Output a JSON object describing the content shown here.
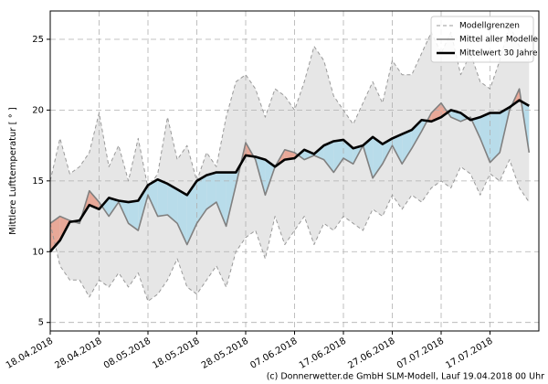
{
  "chart_data": {
    "type": "line",
    "y_label": "Mittlere Lufttemperatur [ ° ]",
    "credit": "(c) Donnerwetter.de GmbH SLM-Modell, Lauf 19.04.2018 00 Uhr",
    "x": [
      "18.04.2018",
      "20.04.2018",
      "22.04.2018",
      "24.04.2018",
      "26.04.2018",
      "28.04.2018",
      "30.04.2018",
      "02.05.2018",
      "04.05.2018",
      "06.05.2018",
      "08.05.2018",
      "10.05.2018",
      "12.05.2018",
      "14.05.2018",
      "16.05.2018",
      "18.05.2018",
      "20.05.2018",
      "22.05.2018",
      "24.05.2018",
      "26.05.2018",
      "28.05.2018",
      "30.05.2018",
      "01.06.2018",
      "03.06.2018",
      "05.06.2018",
      "07.06.2018",
      "09.06.2018",
      "11.06.2018",
      "13.06.2018",
      "15.06.2018",
      "17.06.2018",
      "19.06.2018",
      "21.06.2018",
      "23.06.2018",
      "25.06.2018",
      "27.06.2018",
      "29.06.2018",
      "01.07.2018",
      "03.07.2018",
      "05.07.2018",
      "07.07.2018",
      "09.07.2018",
      "11.07.2018",
      "13.07.2018",
      "15.07.2018",
      "17.07.2018",
      "19.07.2018",
      "21.07.2018",
      "23.07.2018",
      "25.07.2018"
    ],
    "xlim": [
      "18.04.2018",
      "27.07.2018"
    ],
    "xticks": [
      "18.04.2018",
      "28.04.2018",
      "08.05.2018",
      "18.05.2018",
      "28.05.2018",
      "07.06.2018",
      "17.06.2018",
      "27.06.2018",
      "07.07.2018",
      "17.07.2018"
    ],
    "ylim": [
      4.4,
      27
    ],
    "yticks": [
      5,
      10,
      15,
      20,
      25
    ],
    "grid": true,
    "legend": "upper right",
    "band_color": "#e6e6e6",
    "above_color": "#e8a898",
    "below_color": "#b8dcea",
    "series": [
      {
        "name": "Modellgrenzen",
        "color": "#999999",
        "style": "dashed",
        "upper": [
          15,
          18,
          15.5,
          16,
          17,
          19.8,
          16,
          17.5,
          15,
          18,
          14.5,
          15.5,
          19.5,
          16.5,
          17.5,
          15,
          17,
          16,
          19.5,
          22,
          22.5,
          21.5,
          19.5,
          21.5,
          21,
          20,
          22,
          24.5,
          23.5,
          21,
          20,
          19,
          20.5,
          22,
          20.5,
          23.5,
          22.5,
          22.5,
          24,
          25.5,
          24,
          25.5,
          22.5,
          24,
          22,
          21.5,
          23.5,
          26,
          24.5,
          23.5
        ],
        "lower": [
          12,
          9,
          8,
          8,
          6.8,
          8,
          7.5,
          8.5,
          7.5,
          8.5,
          6.5,
          7,
          8,
          9.5,
          7.5,
          7,
          8,
          9,
          7.5,
          10,
          11,
          11.5,
          9.5,
          12.5,
          10.5,
          11.5,
          12.5,
          10.5,
          12,
          11.5,
          12.5,
          12,
          11.5,
          13,
          12.5,
          14,
          13,
          14,
          13.5,
          14.5,
          15,
          14.5,
          16,
          15.5,
          14,
          15.5,
          15,
          16.5,
          14.5,
          13.5
        ]
      },
      {
        "name": "Mittel aller Modelle",
        "color": "#808080",
        "values": [
          12,
          12.5,
          12.2,
          12,
          14.3,
          13.5,
          12.5,
          13.5,
          12,
          11.5,
          14,
          12.5,
          12.6,
          12,
          10.5,
          12,
          13,
          13.5,
          11.8,
          14.7,
          17.7,
          16.5,
          14,
          16,
          17.2,
          17,
          16.5,
          16.8,
          16.5,
          15.6,
          16.6,
          16.2,
          17.5,
          15.2,
          16.2,
          17.5,
          16.2,
          17.3,
          18.5,
          19.8,
          20.5,
          19.5,
          19.2,
          19.5,
          18,
          16.3,
          17,
          20,
          21.5,
          17
        ]
      },
      {
        "name": "Mittelwert 30 Jahre",
        "color": "#000000",
        "values": [
          10,
          10.8,
          12.1,
          12.2,
          13.3,
          13,
          13.8,
          13.6,
          13.5,
          13.6,
          14.7,
          15.1,
          14.8,
          14.4,
          14,
          15,
          15.4,
          15.6,
          15.6,
          15.6,
          16.8,
          16.7,
          16.5,
          16,
          16.5,
          16.6,
          17.2,
          16.9,
          17.5,
          17.8,
          17.9,
          17.3,
          17.5,
          18.1,
          17.6,
          18,
          18.3,
          18.6,
          19.3,
          19.2,
          19.5,
          20,
          19.8,
          19.3,
          19.5,
          19.8,
          19.8,
          20.2,
          20.7,
          20.3
        ]
      }
    ]
  }
}
